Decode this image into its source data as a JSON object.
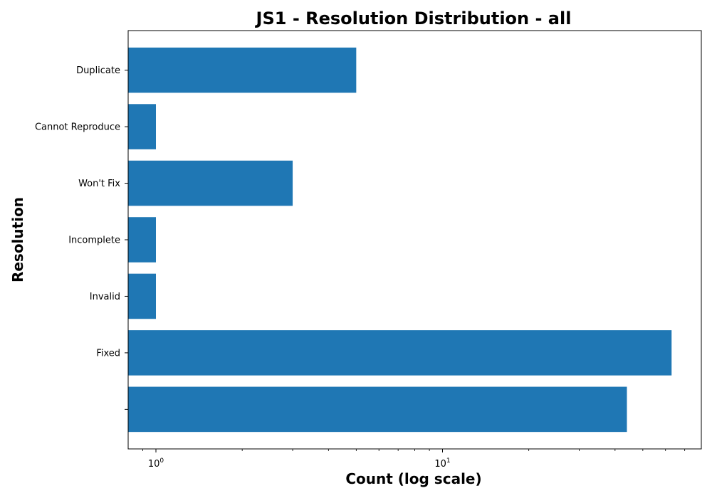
{
  "chart_data": {
    "type": "bar",
    "orientation": "horizontal",
    "title": "JS1 - Resolution Distribution - all",
    "xlabel": "Count (log scale)",
    "ylabel": "Resolution",
    "x_scale": "log",
    "xlim": [
      0.8,
      80
    ],
    "x_ticks": [
      {
        "value": 1,
        "base": "10",
        "exp": "0"
      },
      {
        "value": 10,
        "base": "10",
        "exp": "1"
      }
    ],
    "categories": [
      "",
      "Fixed",
      "Invalid",
      "Incomplete",
      "Won't Fix",
      "Cannot Reproduce",
      "Duplicate"
    ],
    "values": [
      44,
      63,
      1,
      1,
      3,
      1,
      5
    ],
    "bar_color": "#1f77b4",
    "grid": false,
    "legend": "none"
  }
}
